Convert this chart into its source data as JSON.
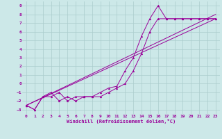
{
  "xlabel": "Windchill (Refroidissement éolien,°C)",
  "bg_color": "#cce8e8",
  "line_color": "#990099",
  "grid_color": "#aacccc",
  "xlim": [
    -0.5,
    23.5
  ],
  "ylim": [
    -3.5,
    9.5
  ],
  "xticks": [
    0,
    1,
    2,
    3,
    4,
    5,
    6,
    7,
    8,
    9,
    10,
    11,
    12,
    13,
    14,
    15,
    16,
    17,
    18,
    19,
    20,
    21,
    22,
    23
  ],
  "yticks": [
    -3,
    -2,
    -1,
    0,
    1,
    2,
    3,
    4,
    5,
    6,
    7,
    8,
    9
  ],
  "series": [
    {
      "x": [
        0,
        1,
        2,
        3,
        4,
        5,
        6,
        7,
        8,
        9,
        10,
        11,
        12,
        13,
        14,
        15,
        16,
        17,
        18,
        19,
        20,
        21,
        22,
        23
      ],
      "y": [
        -2.5,
        -3.0,
        -1.5,
        -1.0,
        -2.0,
        -1.5,
        -2.0,
        -1.5,
        -1.5,
        -1.0,
        -0.5,
        -0.3,
        1.5,
        3.0,
        5.5,
        7.5,
        9.0,
        7.5,
        7.5,
        7.5,
        7.5,
        7.5,
        7.5,
        7.5
      ]
    },
    {
      "x": [
        0,
        1,
        2,
        3,
        4,
        5,
        6,
        7,
        8,
        9,
        10,
        11,
        12,
        13,
        14,
        15,
        16,
        17,
        18,
        19,
        20,
        21,
        22,
        23
      ],
      "y": [
        -2.5,
        -3.0,
        -1.5,
        -1.5,
        -1.0,
        -2.0,
        -1.5,
        -1.5,
        -1.5,
        -1.5,
        -1.0,
        -0.5,
        0.0,
        1.5,
        3.5,
        6.0,
        7.5,
        7.5,
        7.5,
        7.5,
        7.5,
        7.5,
        7.5,
        7.5
      ]
    },
    {
      "x": [
        0,
        23
      ],
      "y": [
        -2.5,
        7.5
      ]
    },
    {
      "x": [
        0,
        23
      ],
      "y": [
        -2.5,
        8.0
      ]
    }
  ]
}
